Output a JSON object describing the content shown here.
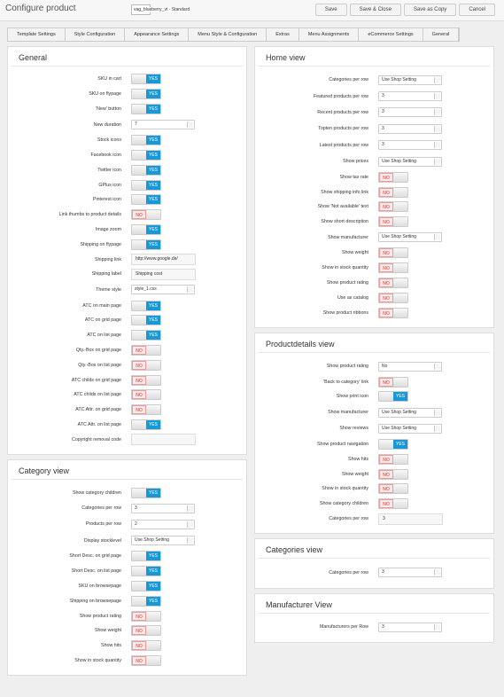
{
  "header": {
    "title": "Configure product",
    "template": "vag_blueberry_vt - Standard",
    "buttons": [
      "Save",
      "Save & Close",
      "Save as Copy",
      "Cancel"
    ]
  },
  "tabs": [
    "Template Settings",
    "Style Configuration",
    "Appearance Settings",
    "Menu Style & Configuration",
    "Extras",
    "Menu Assignments",
    "eCommerce Settings",
    "General"
  ],
  "left": [
    {
      "title": "General",
      "rows": [
        {
          "label": "SKU in cart",
          "kind": "toggle",
          "value": "YES"
        },
        {
          "label": "SKU on flypage",
          "kind": "toggle",
          "value": "YES"
        },
        {
          "label": "'New' button",
          "kind": "toggle",
          "value": "YES"
        },
        {
          "label": "New duration",
          "kind": "select",
          "value": "7"
        },
        {
          "label": "Stock icons",
          "kind": "toggle",
          "value": "YES"
        },
        {
          "label": "Facebook icon",
          "kind": "toggle",
          "value": "YES"
        },
        {
          "label": "Twitter icon",
          "kind": "toggle",
          "value": "YES"
        },
        {
          "label": "GPlus icon",
          "kind": "toggle",
          "value": "YES"
        },
        {
          "label": "Pinterest icon",
          "kind": "toggle",
          "value": "YES"
        },
        {
          "label": "Link thumbs to product details",
          "kind": "toggle",
          "value": "NO"
        },
        {
          "label": "Image zoom",
          "kind": "toggle",
          "value": "YES"
        },
        {
          "label": "Shipping on flypage",
          "kind": "toggle",
          "value": "YES"
        },
        {
          "label": "Shipping link",
          "kind": "input",
          "value": "http://www.google.de/"
        },
        {
          "label": "Shipping label",
          "kind": "input",
          "value": "Shipping cost"
        },
        {
          "label": "Theme style",
          "kind": "select",
          "value": "style_1.css"
        },
        {
          "label": "ATC on main page",
          "kind": "toggle",
          "value": "YES"
        },
        {
          "label": "ATC on grid page",
          "kind": "toggle",
          "value": "YES"
        },
        {
          "label": "ATC on list page",
          "kind": "toggle",
          "value": "YES"
        },
        {
          "label": "Qty.-Box on grid page",
          "kind": "toggle",
          "value": "NO"
        },
        {
          "label": "Qty.-Box on list page",
          "kind": "toggle",
          "value": "NO"
        },
        {
          "label": "ATC childs on grid page",
          "kind": "toggle",
          "value": "NO"
        },
        {
          "label": "ATC childs on list page",
          "kind": "toggle",
          "value": "NO"
        },
        {
          "label": "ATC Attr. on grid page",
          "kind": "toggle",
          "value": "NO"
        },
        {
          "label": "ATC Attr. on list page",
          "kind": "toggle",
          "value": "YES"
        },
        {
          "label": "Copyright removal code",
          "kind": "input"
        }
      ]
    },
    {
      "title": "Category view",
      "rows": [
        {
          "label": "Show category children",
          "kind": "toggle",
          "value": "YES"
        },
        {
          "label": "Categories per row",
          "kind": "select",
          "value": "3"
        },
        {
          "label": "Products per row",
          "kind": "select",
          "value": "2"
        },
        {
          "label": "Display stocklevel",
          "kind": "select",
          "value": "Use Shop Setting"
        },
        {
          "label": "Short Desc. on grid page",
          "kind": "toggle",
          "value": "YES"
        },
        {
          "label": "Short Desc. on list page",
          "kind": "toggle",
          "value": "YES"
        },
        {
          "label": "SKU on browsepage",
          "kind": "toggle",
          "value": "YES"
        },
        {
          "label": "Shipping on browsepage",
          "kind": "toggle",
          "value": "YES"
        },
        {
          "label": "Show product rating",
          "kind": "toggle",
          "value": "NO"
        },
        {
          "label": "Show weight",
          "kind": "toggle",
          "value": "NO"
        },
        {
          "label": "Show hits",
          "kind": "toggle",
          "value": "NO"
        },
        {
          "label": "Show in stock quantity",
          "kind": "toggle",
          "value": "NO"
        }
      ]
    }
  ],
  "right": [
    {
      "title": "Home view",
      "rows": [
        {
          "label": "Categories per row",
          "kind": "select",
          "value": "Use Shop Setting"
        },
        {
          "label": "Featured products per row",
          "kind": "select",
          "value": "3"
        },
        {
          "label": "Recent products per row",
          "kind": "select",
          "value": "3"
        },
        {
          "label": "Topten products per row",
          "kind": "select",
          "value": "3"
        },
        {
          "label": "Latest products per row",
          "kind": "select",
          "value": "3"
        },
        {
          "label": "Show prices",
          "kind": "select",
          "value": "Use Shop Setting"
        },
        {
          "label": "Show tax rate",
          "kind": "toggle",
          "value": "NO"
        },
        {
          "label": "Show shipping info link",
          "kind": "toggle",
          "value": "NO"
        },
        {
          "label": "Show 'Not available' text",
          "kind": "toggle",
          "value": "NO"
        },
        {
          "label": "Show short description",
          "kind": "toggle",
          "value": "NO"
        },
        {
          "label": "Show manufacturer",
          "kind": "select",
          "value": "Use Shop Setting"
        },
        {
          "label": "Show weight",
          "kind": "toggle",
          "value": "NO"
        },
        {
          "label": "Show in stock quantity",
          "kind": "toggle",
          "value": "NO"
        },
        {
          "label": "Show product rating",
          "kind": "toggle",
          "value": "NO"
        },
        {
          "label": "Use as catalog",
          "kind": "toggle",
          "value": "NO"
        },
        {
          "label": "Show product ribbons",
          "kind": "toggle",
          "value": "NO"
        }
      ]
    },
    {
      "title": "Productdetails view",
      "rows": [
        {
          "label": "Show product rating",
          "kind": "select",
          "value": "No"
        },
        {
          "label": "'Back to category' link",
          "kind": "toggle",
          "value": "NO"
        },
        {
          "label": "Show print icon",
          "kind": "toggle",
          "value": "YES"
        },
        {
          "label": "Show manufacturer",
          "kind": "select",
          "value": "Use Shop Setting"
        },
        {
          "label": "Show reviews",
          "kind": "select",
          "value": "Use Shop Setting"
        },
        {
          "label": "Show product navigation",
          "kind": "toggle",
          "value": "YES"
        },
        {
          "label": "Show hits",
          "kind": "toggle",
          "value": "NO"
        },
        {
          "label": "Show weight",
          "kind": "toggle",
          "value": "NO"
        },
        {
          "label": "Show in stock quantity",
          "kind": "toggle",
          "value": "NO"
        },
        {
          "label": "Show category children",
          "kind": "toggle",
          "value": "NO"
        },
        {
          "label": "Categories per row",
          "kind": "input",
          "value": "3"
        }
      ]
    },
    {
      "title": "Categories view",
      "rows": [
        {
          "label": "Categories per row",
          "kind": "select",
          "value": "3"
        }
      ]
    },
    {
      "title": "Manufacturer View",
      "rows": [
        {
          "label": "Manufacturers per Row",
          "kind": "select",
          "value": "3"
        }
      ]
    }
  ]
}
